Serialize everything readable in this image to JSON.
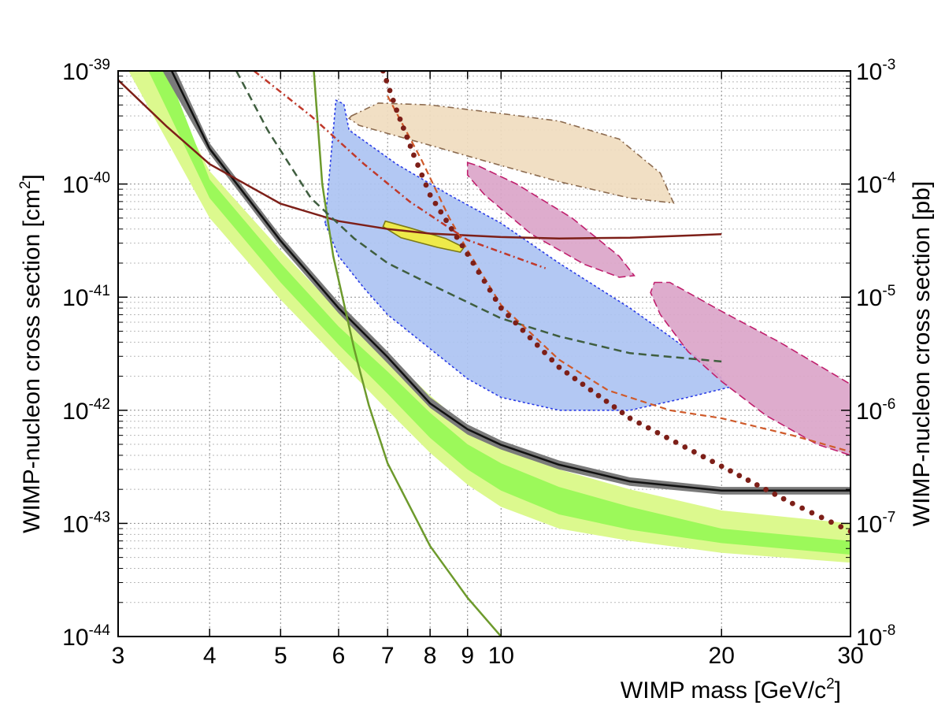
{
  "chart_data": {
    "type": "line",
    "title": "",
    "xlabel": {
      "base": "WIMP mass [GeV/c",
      "sup": "2",
      "tail": "]"
    },
    "ylabel": {
      "base": "WIMP-nucleon cross section [cm",
      "sup": "2",
      "tail": "]"
    },
    "y2label": "WIMP-nucleon cross section [pb]",
    "x_scale": "log",
    "y_scale": "log",
    "xlim": [
      3,
      30
    ],
    "ylim": [
      1e-44,
      1e-39
    ],
    "grid": true,
    "x_ticks": [
      {
        "value": 3,
        "label": "3"
      },
      {
        "value": 4,
        "label": "4"
      },
      {
        "value": 5,
        "label": "5"
      },
      {
        "value": 6,
        "label": "6"
      },
      {
        "value": 7,
        "label": "7"
      },
      {
        "value": 8,
        "label": "8"
      },
      {
        "value": 9,
        "label": "9"
      },
      {
        "value": 10,
        "label": "10"
      },
      {
        "value": 20,
        "label": "20"
      },
      {
        "value": 30,
        "label": "30"
      }
    ],
    "y_ticks": [
      {
        "value": 1e-39,
        "base": "10",
        "exp": "-39"
      },
      {
        "value": 1e-40,
        "base": "10",
        "exp": "-40"
      },
      {
        "value": 1e-41,
        "base": "10",
        "exp": "-41"
      },
      {
        "value": 1e-42,
        "base": "10",
        "exp": "-42"
      },
      {
        "value": 1e-43,
        "base": "10",
        "exp": "-43"
      },
      {
        "value": 1e-44,
        "base": "10",
        "exp": "-44"
      }
    ],
    "y2_ticks": [
      {
        "value": 1e-39,
        "base": "10",
        "exp": "-3"
      },
      {
        "value": 1e-40,
        "base": "10",
        "exp": "-4"
      },
      {
        "value": 1e-41,
        "base": "10",
        "exp": "-5"
      },
      {
        "value": 1e-42,
        "base": "10",
        "exp": "-6"
      },
      {
        "value": 1e-43,
        "base": "10",
        "exp": "-7"
      },
      {
        "value": 1e-44,
        "base": "10",
        "exp": "-8"
      }
    ],
    "bands": [
      {
        "color": "#dcf98e",
        "upper": [
          [
            3.4,
            1e-39
          ],
          [
            4,
            1.3e-40
          ],
          [
            5,
            2.6e-41
          ],
          [
            6,
            7.5e-42
          ],
          [
            7,
            3.1e-42
          ],
          [
            8,
            1.35e-42
          ],
          [
            9,
            7e-43
          ],
          [
            10,
            4.8e-43
          ],
          [
            12,
            3e-43
          ],
          [
            15,
            2e-43
          ],
          [
            20,
            1.3e-43
          ],
          [
            30,
            1e-43
          ]
        ],
        "lower": [
          [
            3.1,
            1e-39
          ],
          [
            4,
            5e-41
          ],
          [
            5,
            9.5e-42
          ],
          [
            6,
            2.8e-42
          ],
          [
            7,
            1e-42
          ],
          [
            8,
            4.2e-43
          ],
          [
            9,
            2.2e-43
          ],
          [
            10,
            1.4e-43
          ],
          [
            12,
            9e-44
          ],
          [
            15,
            7e-44
          ],
          [
            20,
            5.5e-44
          ],
          [
            30,
            4.5e-44
          ]
        ]
      },
      {
        "color": "#9cf95a",
        "upper": [
          [
            3.5,
            1e-39
          ],
          [
            4,
            1.1e-40
          ],
          [
            5,
            2e-41
          ],
          [
            6,
            5.5e-42
          ],
          [
            7,
            2.2e-42
          ],
          [
            8,
            9.5e-43
          ],
          [
            9,
            5e-43
          ],
          [
            10,
            3.4e-43
          ],
          [
            12,
            2.1e-43
          ],
          [
            15,
            1.4e-43
          ],
          [
            20,
            9e-44
          ],
          [
            30,
            7e-44
          ]
        ],
        "lower": [
          [
            3.3,
            1e-39
          ],
          [
            4,
            7.5e-41
          ],
          [
            5,
            1.35e-41
          ],
          [
            6,
            3.8e-42
          ],
          [
            7,
            1.4e-42
          ],
          [
            8,
            5.7e-43
          ],
          [
            9,
            3e-43
          ],
          [
            10,
            1.95e-43
          ],
          [
            12,
            1.2e-43
          ],
          [
            15,
            8.8e-44
          ],
          [
            20,
            6.7e-44
          ],
          [
            30,
            5.3e-44
          ]
        ]
      },
      {
        "color": "#7a7a7a",
        "upper": [
          [
            3.6,
            1e-39
          ],
          [
            4,
            2.3e-40
          ],
          [
            5,
            3.5e-41
          ],
          [
            6,
            9e-42
          ],
          [
            7,
            3.3e-42
          ],
          [
            8,
            1.3e-42
          ],
          [
            9,
            7.5e-43
          ],
          [
            10,
            5.4e-43
          ],
          [
            12,
            3.6e-43
          ],
          [
            15,
            2.55e-43
          ],
          [
            20,
            2.1e-43
          ],
          [
            30,
            2.1e-43
          ]
        ],
        "lower": [
          [
            3.45,
            1e-39
          ],
          [
            4,
            1.85e-40
          ],
          [
            5,
            2.8e-41
          ],
          [
            6,
            7.2e-42
          ],
          [
            7,
            2.6e-42
          ],
          [
            8,
            1.05e-42
          ],
          [
            9,
            6.1e-43
          ],
          [
            10,
            4.5e-43
          ],
          [
            12,
            3e-43
          ],
          [
            15,
            2.15e-43
          ],
          [
            20,
            1.8e-43
          ],
          [
            30,
            1.8e-43
          ]
        ]
      }
    ],
    "contours": [
      {
        "fill": "#f0dcbf",
        "stroke": "#8c6b4f",
        "dash": "8 4 2 4",
        "points": [
          [
            6.25,
            4e-40
          ],
          [
            6.8,
            5.2e-40
          ],
          [
            8,
            5e-40
          ],
          [
            10,
            4.2e-40
          ],
          [
            12,
            3.6e-40
          ],
          [
            14.5,
            2.5e-40
          ],
          [
            16.5,
            1.25e-40
          ],
          [
            17.2,
            6.8e-41
          ],
          [
            15,
            7.5e-41
          ],
          [
            12,
            1.05e-40
          ],
          [
            9.5,
            1.6e-40
          ],
          [
            8,
            2.2e-40
          ],
          [
            7,
            2.8e-40
          ],
          [
            6.4,
            3.3e-40
          ],
          [
            6.2,
            3.8e-40
          ]
        ]
      },
      {
        "fill": "#adc3f2",
        "stroke": "#2a3ce6",
        "dash": "3 3",
        "points": [
          [
            5.75,
            4.5e-41
          ],
          [
            5.95,
            5.5e-40
          ],
          [
            6.1,
            5.1e-40
          ],
          [
            6.2,
            3e-40
          ],
          [
            7.2,
            1.5e-40
          ],
          [
            8.5,
            8e-41
          ],
          [
            10,
            4.5e-41
          ],
          [
            12,
            2e-41
          ],
          [
            15,
            8e-42
          ],
          [
            17,
            4.5e-42
          ],
          [
            19.5,
            2.3e-42
          ],
          [
            20.5,
            1.6e-42
          ],
          [
            18,
            1.3e-42
          ],
          [
            15,
            1e-42
          ],
          [
            12,
            1e-42
          ],
          [
            10,
            1.3e-42
          ],
          [
            9,
            1.9e-42
          ],
          [
            8,
            3.5e-42
          ],
          [
            7,
            7e-42
          ],
          [
            6.5,
            1.2e-41
          ],
          [
            6,
            2.3e-41
          ]
        ]
      },
      {
        "fill": "#dba5c9",
        "stroke": "#c0206e",
        "dash": "10 5",
        "points": [
          [
            9,
            1.55e-40
          ],
          [
            9.3,
            1.45e-40
          ],
          [
            10.5,
            1e-40
          ],
          [
            12.5,
            5e-41
          ],
          [
            14.5,
            2.3e-41
          ],
          [
            15.2,
            1.55e-41
          ],
          [
            14.5,
            1.5e-41
          ],
          [
            13,
            1.95e-41
          ],
          [
            11,
            3.6e-41
          ],
          [
            9.5,
            8e-41
          ],
          [
            9,
            1.2e-40
          ]
        ]
      },
      {
        "fill": "#dba5c9",
        "stroke": "#c0206e",
        "dash": "10 5",
        "points": [
          [
            16.2,
            1.35e-41
          ],
          [
            17,
            1.35e-41
          ],
          [
            20,
            7.5e-42
          ],
          [
            24,
            4e-42
          ],
          [
            30,
            1.7e-42
          ],
          [
            30,
            4e-43
          ],
          [
            27,
            5e-43
          ],
          [
            23,
            9e-43
          ],
          [
            20,
            1.8e-42
          ],
          [
            18,
            3.3e-42
          ],
          [
            16.5,
            7e-42
          ],
          [
            16,
            1.1e-41
          ]
        ]
      },
      {
        "fill": "#f3ed3c",
        "stroke": "#7c7a18",
        "dash": "",
        "points": [
          [
            6.95,
            4.7e-41
          ],
          [
            7.5,
            4.1e-41
          ],
          [
            8.4,
            3.3e-41
          ],
          [
            8.9,
            2.75e-41
          ],
          [
            8.8,
            2.5e-41
          ],
          [
            8.2,
            2.75e-41
          ],
          [
            7.3,
            3.35e-41
          ],
          [
            6.9,
            4.2e-41
          ]
        ]
      }
    ],
    "series": [
      {
        "color": "#111111",
        "width": 2.5,
        "dash": "",
        "dots": false,
        "points": [
          [
            3.55,
            1e-39
          ],
          [
            4,
            2.05e-40
          ],
          [
            5,
            3.15e-41
          ],
          [
            6,
            8e-42
          ],
          [
            7,
            2.95e-42
          ],
          [
            8,
            1.15e-42
          ],
          [
            9,
            6.8e-43
          ],
          [
            10,
            4.95e-43
          ],
          [
            12,
            3.3e-43
          ],
          [
            15,
            2.35e-43
          ],
          [
            20,
            1.95e-43
          ],
          [
            30,
            1.95e-43
          ]
        ]
      },
      {
        "color": "#7d1f18",
        "width": 2.5,
        "dash": "",
        "dots": false,
        "points": [
          [
            3,
            8.3e-40
          ],
          [
            3.5,
            3.2e-40
          ],
          [
            4,
            1.5e-40
          ],
          [
            5,
            6.7e-41
          ],
          [
            6,
            4.7e-41
          ],
          [
            7,
            4e-41
          ],
          [
            8,
            3.65e-41
          ],
          [
            10,
            3.4e-41
          ],
          [
            12,
            3.3e-41
          ],
          [
            15,
            3.35e-41
          ],
          [
            20,
            3.6e-41
          ]
        ]
      },
      {
        "color": "#6d9a2c",
        "width": 2.5,
        "dash": "",
        "dots": false,
        "points": [
          [
            5.55,
            1e-39
          ],
          [
            5.7,
            1e-40
          ],
          [
            5.9,
            2.3e-41
          ],
          [
            6.3,
            3.5e-42
          ],
          [
            6.6,
            1.1e-42
          ],
          [
            7,
            3.4e-43
          ],
          [
            8,
            6.3e-44
          ],
          [
            9,
            2.2e-44
          ],
          [
            10,
            1e-44
          ]
        ]
      },
      {
        "color": "#3f5e3f",
        "width": 2.5,
        "dash": "10 6",
        "dots": false,
        "points": [
          [
            4.35,
            1e-39
          ],
          [
            4.8,
            3e-40
          ],
          [
            5.5,
            7.5e-41
          ],
          [
            6.3,
            3.3e-41
          ],
          [
            7,
            2e-41
          ],
          [
            8,
            1.3e-41
          ],
          [
            10,
            6.5e-42
          ],
          [
            12,
            4.5e-42
          ],
          [
            15,
            3.2e-42
          ],
          [
            20,
            2.7e-42
          ]
        ]
      },
      {
        "color": "#cf5a2a",
        "width": 2.2,
        "dash": "8 5",
        "dots": false,
        "points": [
          [
            7,
            6e-40
          ],
          [
            7.8,
            1.6e-40
          ],
          [
            8.5,
            5e-41
          ],
          [
            9,
            2.6e-41
          ],
          [
            10,
            8.5e-42
          ],
          [
            12,
            2.8e-42
          ],
          [
            14,
            1.5e-42
          ],
          [
            17,
            1e-42
          ],
          [
            20,
            8.5e-43
          ],
          [
            25,
            6e-43
          ],
          [
            30,
            4.3e-43
          ]
        ]
      },
      {
        "color": "#c0392b",
        "width": 2.5,
        "dash": "8 4 2 4",
        "dots": false,
        "points": [
          [
            4.6,
            1e-39
          ],
          [
            5.5,
            4e-40
          ],
          [
            6.5,
            1.5e-40
          ],
          [
            7.5,
            7e-41
          ],
          [
            9,
            3.2e-41
          ],
          [
            10,
            2.5e-41
          ],
          [
            11.5,
            1.8e-41
          ]
        ]
      },
      {
        "color": "#7d1f18",
        "width": 0,
        "dash": "",
        "dots": true,
        "points": [
          [
            6.9,
            1e-39
          ],
          [
            7.2,
            4.5e-40
          ],
          [
            7.6,
            1.8e-40
          ],
          [
            8,
            8e-41
          ],
          [
            9,
            2.4e-41
          ],
          [
            10,
            8e-42
          ],
          [
            12,
            2.4e-42
          ],
          [
            15,
            8.5e-43
          ],
          [
            20,
            3.2e-43
          ],
          [
            25,
            1.5e-43
          ],
          [
            30,
            8.5e-44
          ]
        ]
      }
    ]
  }
}
